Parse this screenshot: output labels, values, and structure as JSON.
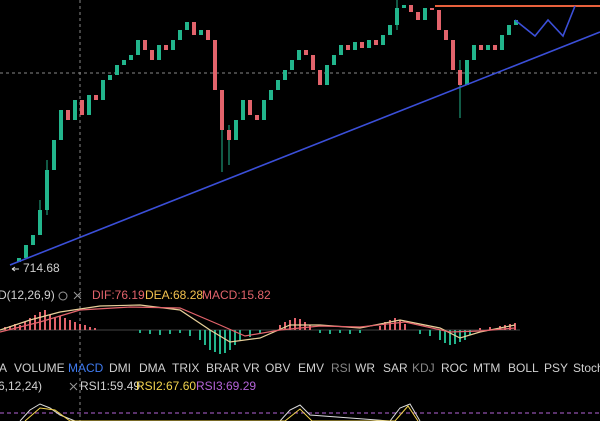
{
  "price_label": "714.68",
  "macd": {
    "title": "D(12,26,9)",
    "dif": "DIF:76.19",
    "dea": "DEA:68.28",
    "macd": "MACD:15.82"
  },
  "tabs": [
    "A",
    "VOLUME",
    "MACD",
    "DMI",
    "DMA",
    "TRIX",
    "BRAR",
    "VR",
    "OBV",
    "EMV",
    "RSI",
    "WR",
    "SAR",
    "KDJ",
    "ROC",
    "MTM",
    "BOLL",
    "PSY",
    "Stoch"
  ],
  "rsi": {
    "title": "6,12,24)",
    "rsi1": "RSI1:59.49",
    "rsi2": "RSI2:67.60",
    "rsi3": "RSI3:69.29"
  }
}
